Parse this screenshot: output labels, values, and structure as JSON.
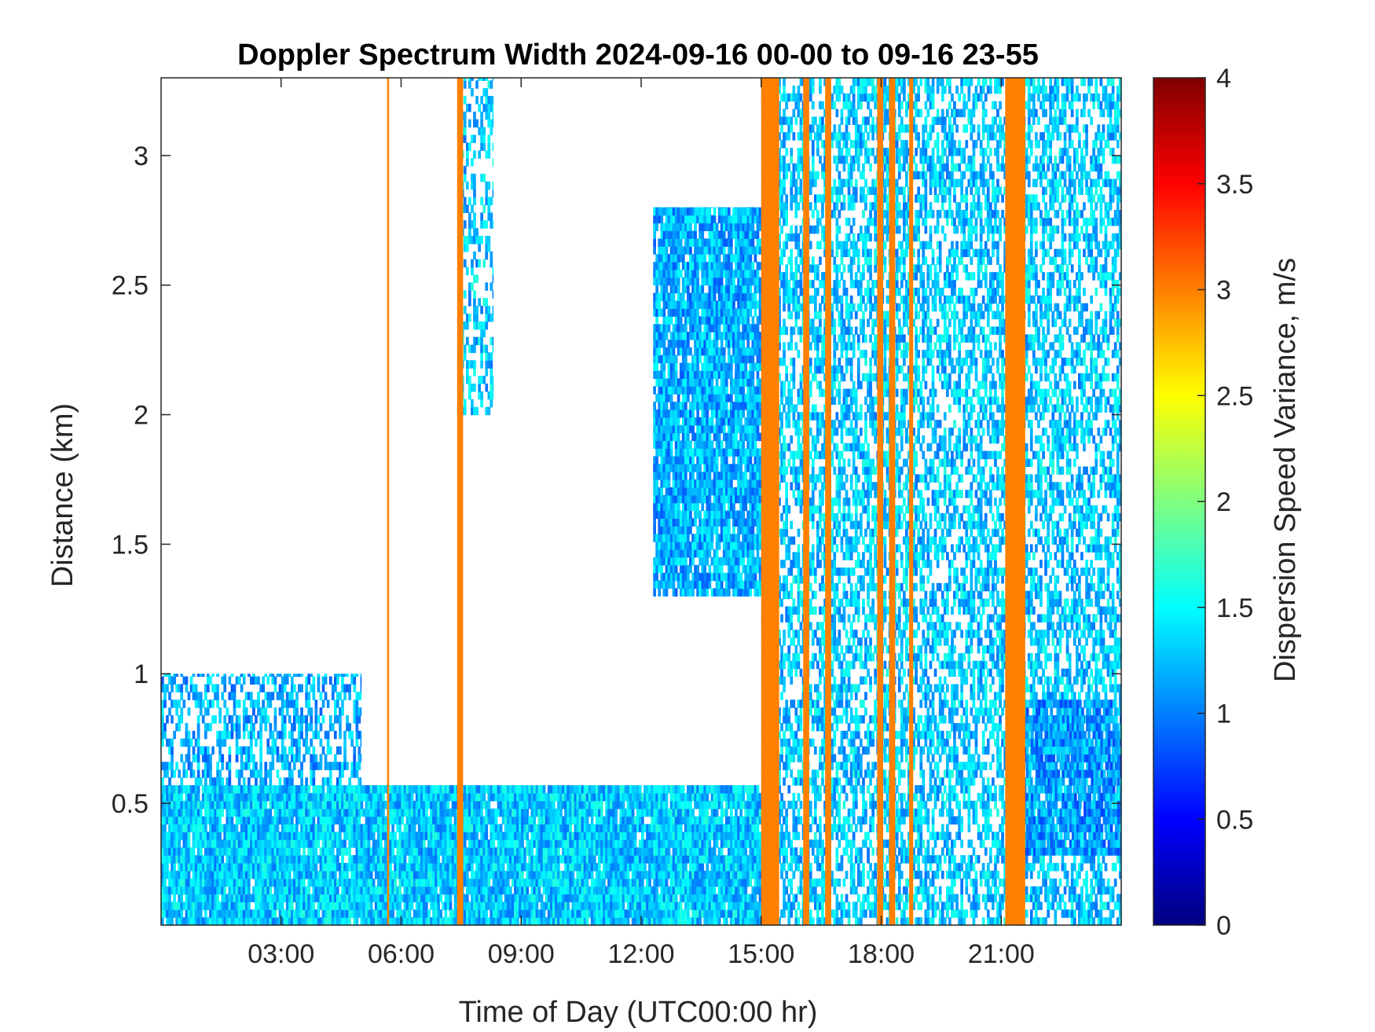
{
  "chart_data": {
    "type": "heatmap",
    "title": "Doppler Spectrum Width 2024-09-16 00-00 to 09-16 23-55",
    "xlabel": "Time of Day (UTC00:00 hr)",
    "ylabel": "Distance (km)",
    "colorbar_label": "Dispersion Speed Variance, m/s",
    "colormap": "jet",
    "xlim": [
      0,
      24
    ],
    "ylim": [
      0.03,
      3.3
    ],
    "clim": [
      0,
      4
    ],
    "x_ticks": [
      {
        "value": 3,
        "label": "03:00"
      },
      {
        "value": 6,
        "label": "06:00"
      },
      {
        "value": 9,
        "label": "09:00"
      },
      {
        "value": 12,
        "label": "12:00"
      },
      {
        "value": 15,
        "label": "15:00"
      },
      {
        "value": 18,
        "label": "18:00"
      },
      {
        "value": 21,
        "label": "21:00"
      }
    ],
    "y_ticks": [
      {
        "value": 0.5,
        "label": "0.5"
      },
      {
        "value": 1,
        "label": "1"
      },
      {
        "value": 1.5,
        "label": "1.5"
      },
      {
        "value": 2,
        "label": "2"
      },
      {
        "value": 2.5,
        "label": "2.5"
      },
      {
        "value": 3,
        "label": "3"
      }
    ],
    "colorbar_ticks": [
      {
        "value": 0,
        "label": "0"
      },
      {
        "value": 0.5,
        "label": "0.5"
      },
      {
        "value": 1,
        "label": "1"
      },
      {
        "value": 1.5,
        "label": "1.5"
      },
      {
        "value": 2,
        "label": "2"
      },
      {
        "value": 2.5,
        "label": "2.5"
      },
      {
        "value": 3,
        "label": "3"
      },
      {
        "value": 3.5,
        "label": "3.5"
      },
      {
        "value": 4,
        "label": "4"
      }
    ],
    "regions": [
      {
        "t0": 0,
        "t1": 15,
        "z0": 0.03,
        "z1": 0.57,
        "value": 1.3,
        "fill": 0.95
      },
      {
        "t0": 0,
        "t1": 5,
        "z0": 0.57,
        "z1": 1.0,
        "value": 1.2,
        "fill": 0.5
      },
      {
        "t0": 12.3,
        "t1": 15,
        "z0": 1.3,
        "z1": 2.8,
        "value": 1.2,
        "fill": 0.9
      },
      {
        "t0": 7.5,
        "t1": 8.3,
        "z0": 2.0,
        "z1": 3.3,
        "value": 1.3,
        "fill": 0.4
      },
      {
        "t0": 15,
        "t1": 24,
        "z0": 0.03,
        "z1": 3.3,
        "value": 1.3,
        "fill": 0.55
      },
      {
        "t0": 21.5,
        "t1": 24,
        "z0": 0.3,
        "z1": 0.9,
        "value": 1.1,
        "fill": 0.8
      }
    ],
    "bands": [
      {
        "t0": 5.65,
        "t1": 5.7,
        "value": 3.0
      },
      {
        "t0": 7.4,
        "t1": 7.55,
        "value": 3.0
      },
      {
        "t0": 15.0,
        "t1": 15.45,
        "value": 3.0
      },
      {
        "t0": 16.05,
        "t1": 16.2,
        "value": 3.0
      },
      {
        "t0": 16.6,
        "t1": 16.75,
        "value": 3.0
      },
      {
        "t0": 17.9,
        "t1": 18.05,
        "value": 3.0
      },
      {
        "t0": 18.2,
        "t1": 18.35,
        "value": 3.0
      },
      {
        "t0": 18.7,
        "t1": 18.8,
        "value": 3.0
      },
      {
        "t0": 21.1,
        "t1": 21.6,
        "value": 3.0
      }
    ]
  }
}
